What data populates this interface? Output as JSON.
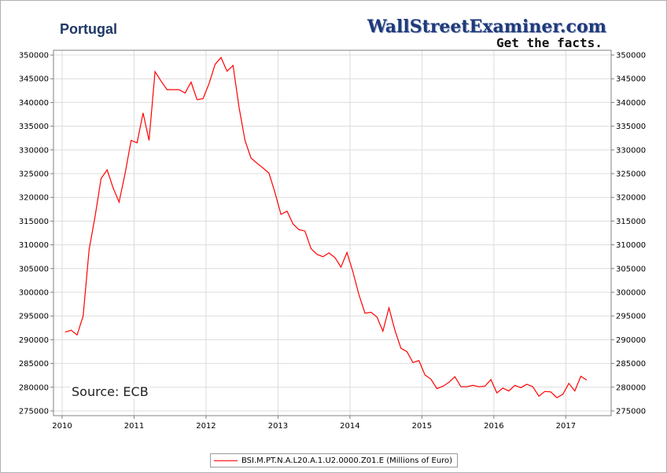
{
  "header": {
    "title": "Portugal",
    "brand": "WallStreetExaminer.com",
    "tagline": "Get the facts."
  },
  "annotation": "Source: ECB",
  "legend": {
    "label": "BSI.M.PT.N.A.L20.A.1.U2.0000.Z01.E (Millions of Euro)",
    "color": "#ff0000"
  },
  "chart_data": {
    "type": "line",
    "title": "Portugal",
    "xlabel": "",
    "ylabel": "",
    "xlim": [
      2009.88,
      2017.63
    ],
    "ylim": [
      274000,
      351000
    ],
    "x_ticks": [
      2010,
      2011,
      2012,
      2013,
      2014,
      2015,
      2016,
      2017
    ],
    "y_ticks": [
      275000,
      280000,
      285000,
      290000,
      295000,
      300000,
      305000,
      310000,
      315000,
      320000,
      325000,
      330000,
      335000,
      340000,
      345000,
      350000
    ],
    "grid": true,
    "legend_position": "bottom-center",
    "series": [
      {
        "name": "BSI.M.PT.N.A.L20.A.1.U2.0000.Z01.E (Millions of Euro)",
        "color": "#ff0000",
        "x_start": "2010-01",
        "frequency": "monthly",
        "values": [
          291600,
          292000,
          291000,
          295000,
          309000,
          316000,
          324000,
          325800,
          322000,
          319000,
          325000,
          332000,
          331500,
          337800,
          332000,
          346500,
          344500,
          342700,
          342700,
          342700,
          342000,
          344300,
          340600,
          340800,
          344000,
          348000,
          349500,
          346600,
          347800,
          339000,
          332000,
          328300,
          327200,
          326200,
          325100,
          321000,
          316400,
          317100,
          314400,
          313200,
          312900,
          309200,
          308000,
          307500,
          308300,
          307300,
          305300,
          308400,
          304300,
          299500,
          295600,
          295800,
          294800,
          291800,
          296700,
          292000,
          288200,
          287500,
          285200,
          285600,
          282600,
          281700,
          279700,
          280200,
          281000,
          282200,
          280100,
          280100,
          280400,
          280100,
          280200,
          281600,
          278800,
          279800,
          279200,
          280400,
          279900,
          280600,
          280100,
          278100,
          279100,
          279000,
          277800,
          278500,
          280800,
          279200,
          282300,
          281500
        ]
      }
    ]
  }
}
